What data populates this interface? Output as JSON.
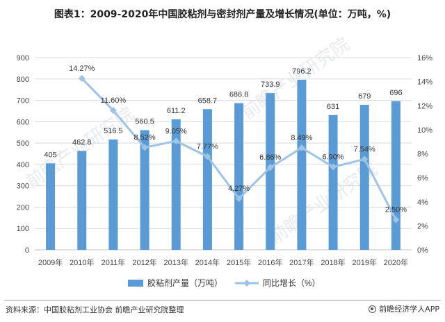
{
  "title": "图表1：2009-2020年中国胶粘剂与密封剂产量及增长情况(单位：万吨，%)",
  "source": "资料来源：中国胶粘剂工业协会 前瞻产业研究院整理",
  "brand": "前瞻经济学人APP",
  "watermark": "前瞻产业研究院",
  "colors": {
    "bar": "#5b9bd5",
    "line": "#9dc3e6",
    "grid": "#d9d9d9"
  },
  "chart_data": {
    "type": "bar+line",
    "categories": [
      "2009年",
      "2010年",
      "2011年",
      "2012年",
      "2013年",
      "2014年",
      "2015年",
      "2016年",
      "2017年",
      "2018年",
      "2019年",
      "2020年"
    ],
    "series": [
      {
        "name": "胶粘剂产量（万吨）",
        "type": "bar",
        "axis": "left",
        "values": [
          405,
          462.8,
          516.5,
          560.5,
          611.2,
          658.7,
          686.8,
          733.9,
          796.2,
          631,
          679,
          696
        ],
        "labels": [
          "405",
          "462.8",
          "516.5",
          "560.5",
          "611.2",
          "658.7",
          "686.8",
          "733.9",
          "796.2",
          "631",
          "679",
          "696"
        ]
      },
      {
        "name": "同比增长（%）",
        "type": "line",
        "axis": "right",
        "values": [
          null,
          14.27,
          11.6,
          8.52,
          9.05,
          7.77,
          4.27,
          6.86,
          8.49,
          6.9,
          7.54,
          2.5
        ],
        "labels": [
          "",
          "14.27%",
          "11.60%",
          "8.52%",
          "9.05%",
          "7.77%",
          "4.27%",
          "6.86%",
          "8.49%",
          "6.90%",
          "7.54%",
          "2.50%"
        ]
      }
    ],
    "y_left": {
      "min": 0,
      "max": 900,
      "ticks": [
        "0",
        "100",
        "200",
        "300",
        "400",
        "500",
        "600",
        "700",
        "800",
        "900"
      ]
    },
    "y_right": {
      "min": 0,
      "max": 16,
      "ticks": [
        "0%",
        "2%",
        "4%",
        "6%",
        "8%",
        "10%",
        "12%",
        "14%",
        "16%"
      ]
    },
    "grid": true,
    "legend_position": "bottom"
  }
}
